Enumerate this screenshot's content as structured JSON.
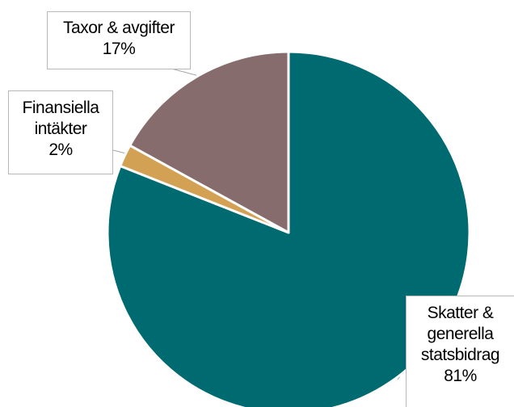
{
  "chart_data": {
    "type": "pie",
    "slices": [
      {
        "label": "Skatter & generella statsbidrag",
        "label_lines": [
          "Skatter &",
          "generella",
          "statsbidrag"
        ],
        "value": 81,
        "value_label": "81%",
        "color": "#006A71"
      },
      {
        "label": "Finansiella intäkter",
        "label_lines": [
          "Finansiella",
          "intäkter"
        ],
        "value": 2,
        "value_label": "2%",
        "color": "#D3A154"
      },
      {
        "label": "Taxor & avgifter",
        "label_lines": [
          "Taxor & avgifter"
        ],
        "value": 17,
        "value_label": "17%",
        "color": "#876C6E"
      }
    ]
  }
}
